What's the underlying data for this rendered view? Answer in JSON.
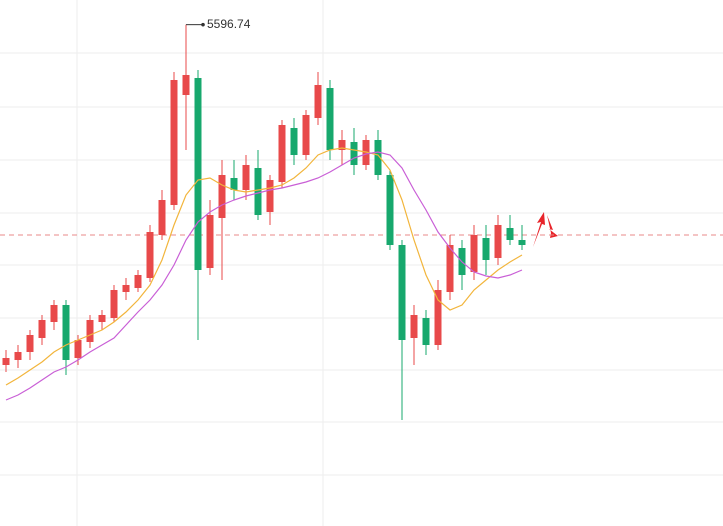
{
  "chart_data": {
    "type": "candlestick",
    "open": [
      3895,
      3920,
      3960,
      4030,
      4110,
      4195,
      3930,
      4010,
      4110,
      4130,
      4260,
      4280,
      4330,
      4545,
      4695,
      5245,
      5330,
      4380,
      4630,
      4830,
      4770,
      4880,
      4660,
      4810,
      5080,
      4945,
      5130,
      5280,
      4970,
      5010,
      4895,
      5020,
      4845,
      4495,
      4030,
      4130,
      3995,
      4260,
      4480,
      4360,
      4530,
      4430,
      4580,
      4520
    ],
    "high": [
      3970,
      3995,
      4070,
      4145,
      4220,
      4220,
      4045,
      4145,
      4170,
      4295,
      4330,
      4370,
      4595,
      4770,
      5360,
      5596.74,
      5370,
      4720,
      4920,
      4920,
      4945,
      4970,
      4845,
      5120,
      5130,
      5170,
      5360,
      5320,
      5070,
      5080,
      5045,
      5070,
      4870,
      4520,
      4195,
      4170,
      4320,
      4545,
      4520,
      4595,
      4595,
      4645,
      4645,
      4595
    ],
    "low": [
      3860,
      3880,
      3920,
      3995,
      4070,
      3845,
      3895,
      3980,
      4070,
      4110,
      4220,
      4260,
      4310,
      4520,
      4670,
      4970,
      4020,
      4345,
      4320,
      4720,
      4720,
      4620,
      4595,
      4780,
      4895,
      4920,
      5095,
      4920,
      4895,
      4845,
      4870,
      4820,
      4470,
      3620,
      3895,
      3945,
      3970,
      4220,
      4270,
      4320,
      4345,
      4395,
      4495,
      4470
    ],
    "close": [
      3930,
      3960,
      4045,
      4120,
      4195,
      3920,
      4020,
      4120,
      4145,
      4270,
      4295,
      4345,
      4560,
      4720,
      5320,
      5345,
      4370,
      4645,
      4845,
      4770,
      4895,
      4645,
      4820,
      5095,
      4945,
      5145,
      5295,
      4970,
      5020,
      4895,
      5020,
      4845,
      4495,
      4020,
      4145,
      3995,
      4270,
      4495,
      4345,
      4545,
      4420,
      4595,
      4520,
      4495
    ],
    "up_color": "#e8494a",
    "down_color": "#17a86d",
    "ma_lines": [
      {
        "color": "#f2b53c",
        "values": [
          3795,
          3830,
          3870,
          3910,
          3960,
          3995,
          4020,
          4045,
          4070,
          4110,
          4160,
          4220,
          4295,
          4420,
          4595,
          4745,
          4820,
          4830,
          4795,
          4770,
          4760,
          4770,
          4780,
          4795,
          4830,
          4880,
          4945,
          4970,
          4980,
          4970,
          4960,
          4945,
          4870,
          4720,
          4520,
          4345,
          4220,
          4170,
          4195,
          4270,
          4320,
          4370,
          4410,
          4445
        ]
      },
      {
        "color": "#c95fd6",
        "values": [
          3720,
          3745,
          3780,
          3820,
          3860,
          3885,
          3920,
          3960,
          3995,
          4030,
          4095,
          4160,
          4220,
          4295,
          4395,
          4520,
          4610,
          4660,
          4695,
          4720,
          4740,
          4755,
          4770,
          4780,
          4795,
          4810,
          4830,
          4860,
          4895,
          4930,
          4950,
          4960,
          4945,
          4880,
          4770,
          4670,
          4560,
          4480,
          4410,
          4360,
          4340,
          4330,
          4345,
          4370
        ]
      }
    ],
    "price_line": 4545,
    "price_line_color": "#e88a8a",
    "ylim": [
      3090,
      5720
    ]
  }
}
